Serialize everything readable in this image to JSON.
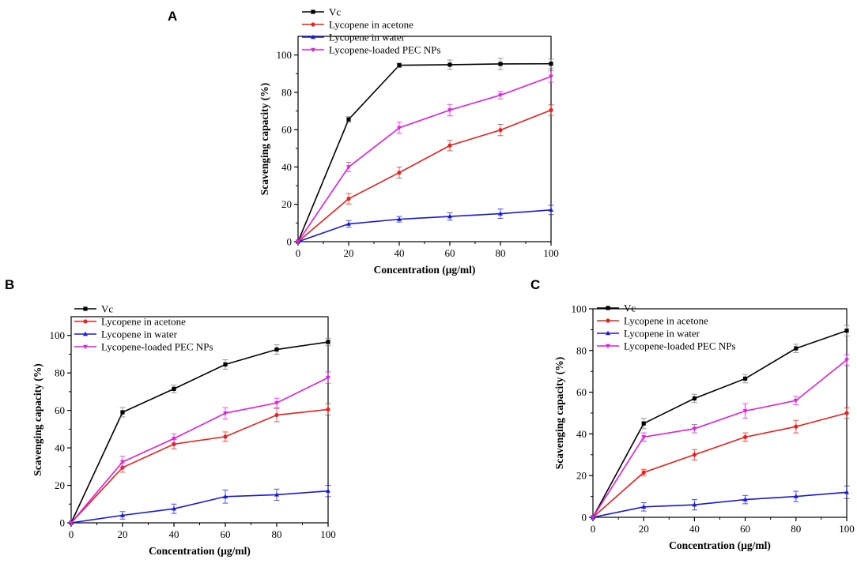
{
  "figure": {
    "panel_labels": [
      "A",
      "B",
      "C"
    ]
  },
  "chart_data": [
    {
      "type": "line",
      "panel": "A",
      "xlabel": "Concentration (μg/ml)",
      "ylabel": "Scavenging capacity (%)",
      "x": [
        0,
        20,
        40,
        60,
        80,
        100
      ],
      "xticks": [
        0,
        20,
        40,
        60,
        80,
        100
      ],
      "yticks": [
        0,
        20,
        40,
        60,
        80,
        100
      ],
      "xlim": [
        0,
        100
      ],
      "ylim": [
        0,
        110
      ],
      "legend_position": "top-left",
      "series": [
        {
          "name": "Vc",
          "color": "#000000",
          "marker": "square",
          "values": [
            0,
            65.5,
            94.5,
            94.8,
            95.2,
            95.3
          ],
          "errors": [
            0,
            1.5,
            1.2,
            2.5,
            3.0,
            2.5
          ]
        },
        {
          "name": "Lycopene in acetone",
          "color": "#e8231f",
          "marker": "circle",
          "values": [
            0,
            23,
            37,
            51.5,
            59.8,
            70.5
          ],
          "errors": [
            0,
            2.8,
            3.0,
            2.8,
            3.0,
            2.8
          ]
        },
        {
          "name": "Lycopene in water",
          "color": "#1a1ad6",
          "marker": "triangle-up",
          "values": [
            0,
            9.5,
            12,
            13.5,
            15,
            17
          ],
          "errors": [
            0,
            1.8,
            1.5,
            2.0,
            2.5,
            2.5
          ]
        },
        {
          "name": "Lycopene-loaded PEC NPs",
          "color": "#e020e0",
          "marker": "triangle-down",
          "values": [
            0,
            40,
            61,
            70.5,
            78.5,
            88.5
          ],
          "errors": [
            0,
            2.5,
            3.0,
            3.0,
            2.0,
            3.0
          ]
        }
      ]
    },
    {
      "type": "line",
      "panel": "B",
      "xlabel": "Concentration (μg/ml)",
      "ylabel": "Scavenging capacity (%)",
      "x": [
        0,
        20,
        40,
        60,
        80,
        100
      ],
      "xticks": [
        0,
        20,
        40,
        60,
        80,
        100
      ],
      "yticks": [
        0,
        20,
        40,
        60,
        80,
        100
      ],
      "xlim": [
        0,
        100
      ],
      "ylim": [
        0,
        110
      ],
      "legend_position": "top-left",
      "series": [
        {
          "name": "Vc",
          "color": "#000000",
          "marker": "square",
          "values": [
            0,
            59,
            71.5,
            84.5,
            92.5,
            96.5
          ],
          "errors": [
            0,
            2.5,
            2.0,
            2.5,
            2.5,
            2.0
          ]
        },
        {
          "name": "Lycopene in acetone",
          "color": "#e8231f",
          "marker": "circle",
          "values": [
            0,
            29.5,
            42,
            46,
            57.5,
            60.5
          ],
          "errors": [
            0,
            2.5,
            2.5,
            2.5,
            3.5,
            3.0
          ]
        },
        {
          "name": "Lycopene in water",
          "color": "#1a1ad6",
          "marker": "triangle-up",
          "values": [
            0,
            4,
            7.5,
            14,
            15,
            17
          ],
          "errors": [
            0,
            2.0,
            2.5,
            3.5,
            3.0,
            3.0
          ]
        },
        {
          "name": "Lycopene-loaded PEC NPs",
          "color": "#e020e0",
          "marker": "triangle-down",
          "values": [
            0,
            32.5,
            45,
            58.5,
            64,
            77.5
          ],
          "errors": [
            0,
            3.0,
            2.5,
            3.0,
            2.5,
            3.0
          ]
        }
      ]
    },
    {
      "type": "line",
      "panel": "C",
      "xlabel": "Concentration (μg/ml)",
      "ylabel": "Scavenging capacity (%)",
      "x": [
        0,
        20,
        40,
        60,
        80,
        100
      ],
      "xticks": [
        0,
        20,
        40,
        60,
        80,
        100
      ],
      "yticks": [
        0,
        20,
        40,
        60,
        80,
        100
      ],
      "xlim": [
        0,
        100
      ],
      "ylim": [
        0,
        100
      ],
      "legend_position": "top-left",
      "series": [
        {
          "name": "Vc",
          "color": "#000000",
          "marker": "square",
          "values": [
            0,
            45,
            57,
            66.5,
            81,
            89.5
          ],
          "errors": [
            0,
            2.5,
            2.0,
            2.0,
            2.0,
            2.5
          ]
        },
        {
          "name": "Lycopene in acetone",
          "color": "#e8231f",
          "marker": "circle",
          "values": [
            0,
            21.5,
            30,
            38.5,
            43.5,
            50
          ],
          "errors": [
            0,
            1.5,
            2.5,
            2.0,
            3.0,
            2.5
          ]
        },
        {
          "name": "Lycopene in water",
          "color": "#1a1ad6",
          "marker": "triangle-up",
          "values": [
            0,
            5,
            6,
            8.5,
            10,
            12
          ],
          "errors": [
            0,
            2.0,
            2.5,
            2.0,
            2.5,
            3.0
          ]
        },
        {
          "name": "Lycopene-loaded PEC NPs",
          "color": "#e020e0",
          "marker": "triangle-down",
          "values": [
            0,
            38.5,
            42.5,
            51,
            56,
            75.5
          ],
          "errors": [
            0,
            2.0,
            2.0,
            3.5,
            2.0,
            2.5
          ]
        }
      ]
    }
  ]
}
